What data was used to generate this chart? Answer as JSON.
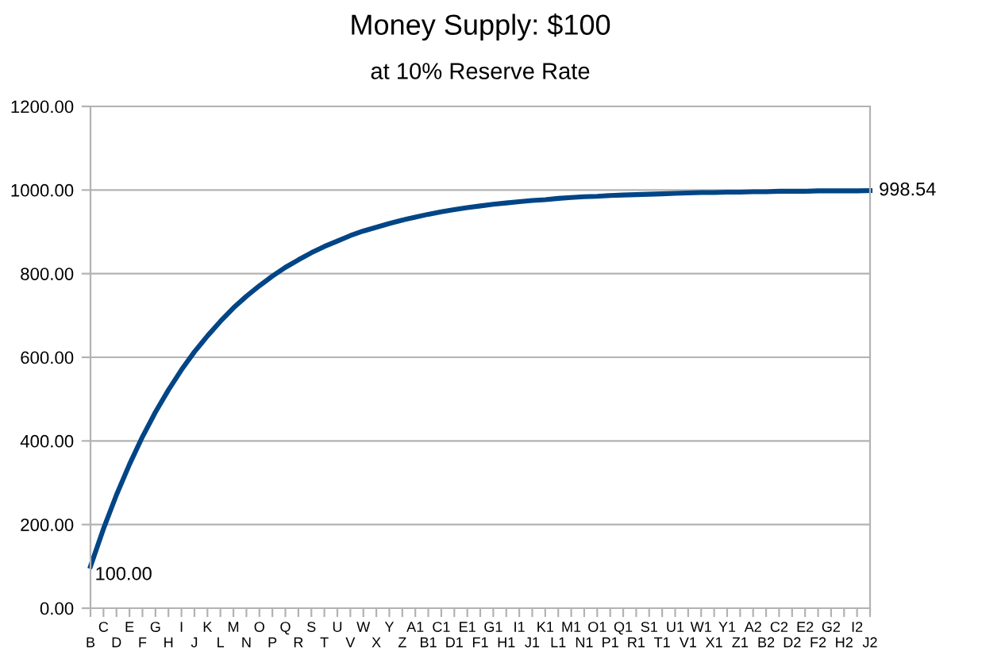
{
  "chart_data": {
    "type": "line",
    "title": "Money Supply: $100",
    "subtitle": "at 10% Reserve Rate",
    "categories": [
      "B",
      "C",
      "D",
      "E",
      "F",
      "G",
      "H",
      "I",
      "J",
      "K",
      "L",
      "M",
      "N",
      "O",
      "P",
      "Q",
      "R",
      "S",
      "T",
      "U",
      "V",
      "W",
      "X",
      "Y",
      "Z",
      "A1",
      "B1",
      "C1",
      "D1",
      "E1",
      "F1",
      "G1",
      "H1",
      "I1",
      "J1",
      "K1",
      "L1",
      "M1",
      "N1",
      "O1",
      "P1",
      "Q1",
      "R1",
      "S1",
      "T1",
      "U1",
      "V1",
      "W1",
      "X1",
      "Y1",
      "Z1",
      "A2",
      "B2",
      "C2",
      "D2",
      "E2",
      "F2",
      "G2",
      "H2",
      "I2",
      "J2"
    ],
    "series": [
      {
        "color": "#004586",
        "values": [
          100,
          190,
          271,
          344,
          410,
          469,
          522,
          570,
          613,
          651,
          686,
          718,
          746,
          771,
          794,
          815,
          833,
          850,
          865,
          878,
          891,
          902,
          911,
          920,
          928,
          935,
          942,
          948,
          953,
          958,
          962,
          966,
          969,
          972,
          975,
          977,
          980,
          982,
          984,
          985,
          987,
          988,
          989,
          990,
          991,
          992,
          993,
          994,
          994,
          995,
          995,
          996,
          996,
          997,
          997,
          997,
          998,
          998,
          998,
          998,
          998.54
        ],
        "value_labels": [
          "100.00",
          null,
          null,
          null,
          null,
          null,
          null,
          null,
          null,
          null,
          null,
          null,
          null,
          null,
          null,
          null,
          null,
          null,
          null,
          null,
          null,
          null,
          null,
          null,
          null,
          null,
          null,
          null,
          null,
          null,
          null,
          null,
          null,
          null,
          null,
          null,
          null,
          null,
          null,
          null,
          null,
          null,
          null,
          null,
          null,
          null,
          null,
          null,
          null,
          null,
          null,
          null,
          null,
          null,
          null,
          null,
          null,
          null,
          null,
          null,
          "998.54"
        ]
      }
    ],
    "ylim": [
      0,
      1200
    ],
    "yticks": [
      {
        "value": 0,
        "label": "0.00"
      },
      {
        "value": 200,
        "label": "200.00"
      },
      {
        "value": 400,
        "label": "400.00"
      },
      {
        "value": 600,
        "label": "600.00"
      },
      {
        "value": 800,
        "label": "800.00"
      },
      {
        "value": 1000,
        "label": "1000.00"
      },
      {
        "value": 1200,
        "label": "1200.00"
      }
    ],
    "grid": "y",
    "marker": "none",
    "line_style": "solid"
  }
}
